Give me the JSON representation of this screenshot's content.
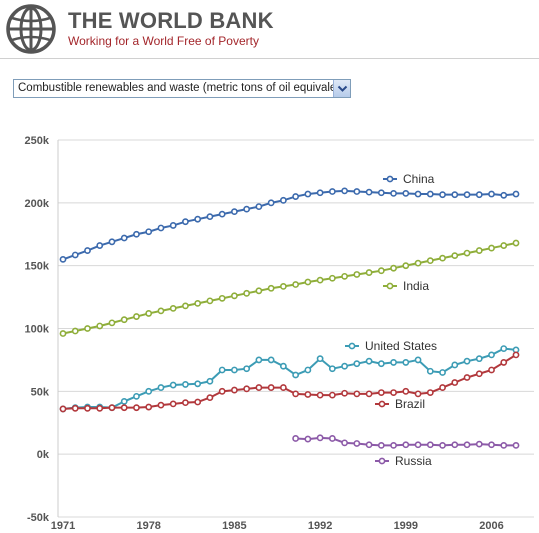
{
  "header": {
    "title": "THE WORLD BANK",
    "tagline": "Working for a World Free of Poverty"
  },
  "selector": {
    "value": "Combustible renewables and waste (metric tons of oil equivalent)"
  },
  "colors": {
    "brand_red": "#a3262b",
    "China": "#3c6aad",
    "India": "#8fae3a",
    "United States": "#3c9cb5",
    "Brazil": "#b2383c",
    "Russia": "#8c5aa8"
  },
  "chart_data": {
    "type": "line",
    "ylim": [
      -50000,
      250000
    ],
    "xlim": [
      1971,
      2008
    ],
    "y_ticks": [
      -50000,
      0,
      50000,
      100000,
      150000,
      200000,
      250000
    ],
    "y_tick_labels": [
      "-50k",
      "0k",
      "50k",
      "100k",
      "150k",
      "200k",
      "250k"
    ],
    "x_ticks": [
      1971,
      1978,
      1985,
      1992,
      1999,
      2006
    ],
    "x_tick_labels": [
      "1971",
      "1978",
      "1985",
      "1992",
      "1999",
      "2006"
    ],
    "grid": "horizontal",
    "series": [
      {
        "name": "China",
        "color": "#3c6aad",
        "x": [
          1971,
          1972,
          1973,
          1974,
          1975,
          1976,
          1977,
          1978,
          1979,
          1980,
          1981,
          1982,
          1983,
          1984,
          1985,
          1986,
          1987,
          1988,
          1989,
          1990,
          1991,
          1992,
          1993,
          1994,
          1995,
          1996,
          1997,
          1998,
          1999,
          2000,
          2001,
          2002,
          2003,
          2004,
          2005,
          2006,
          2007,
          2008
        ],
        "values": [
          155000,
          158500,
          162000,
          166000,
          169000,
          172000,
          175000,
          177000,
          180000,
          182000,
          185000,
          187000,
          189000,
          191000,
          193000,
          195000,
          197000,
          200000,
          202000,
          205000,
          207000,
          208000,
          209000,
          209500,
          209000,
          208500,
          208000,
          207500,
          207500,
          207000,
          207000,
          206500,
          206500,
          206500,
          206500,
          207000,
          206000,
          207000
        ]
      },
      {
        "name": "India",
        "color": "#8fae3a",
        "x": [
          1971,
          1972,
          1973,
          1974,
          1975,
          1976,
          1977,
          1978,
          1979,
          1980,
          1981,
          1982,
          1983,
          1984,
          1985,
          1986,
          1987,
          1988,
          1989,
          1990,
          1991,
          1992,
          1993,
          1994,
          1995,
          1996,
          1997,
          1998,
          1999,
          2000,
          2001,
          2002,
          2003,
          2004,
          2005,
          2006,
          2007,
          2008
        ],
        "values": [
          96000,
          98000,
          100000,
          102000,
          104500,
          107000,
          109500,
          112000,
          114000,
          116000,
          118000,
          120000,
          122000,
          124000,
          126000,
          128000,
          130000,
          132000,
          133500,
          135000,
          137000,
          138500,
          140000,
          141500,
          143000,
          144500,
          146000,
          148000,
          150000,
          152000,
          154000,
          156000,
          158000,
          160000,
          162000,
          164000,
          166000,
          168000
        ]
      },
      {
        "name": "United States",
        "color": "#3c9cb5",
        "x": [
          1971,
          1972,
          1973,
          1974,
          1975,
          1976,
          1977,
          1978,
          1979,
          1980,
          1981,
          1982,
          1983,
          1984,
          1985,
          1986,
          1987,
          1988,
          1989,
          1990,
          1991,
          1992,
          1993,
          1994,
          1995,
          1996,
          1997,
          1998,
          1999,
          2000,
          2001,
          2002,
          2003,
          2004,
          2005,
          2006,
          2007,
          2008
        ],
        "values": [
          36000,
          37000,
          37500,
          37500,
          37000,
          42000,
          46000,
          50000,
          53000,
          55000,
          55500,
          56000,
          58000,
          67000,
          67000,
          68000,
          75000,
          75000,
          70000,
          63000,
          67000,
          76000,
          68000,
          70000,
          72000,
          74000,
          72000,
          73000,
          73000,
          75000,
          66000,
          65000,
          71000,
          74000,
          76000,
          79000,
          84000,
          83000
        ]
      },
      {
        "name": "Brazil",
        "color": "#b2383c",
        "x": [
          1971,
          1972,
          1973,
          1974,
          1975,
          1976,
          1977,
          1978,
          1979,
          1980,
          1981,
          1982,
          1983,
          1984,
          1985,
          1986,
          1987,
          1988,
          1989,
          1990,
          1991,
          1992,
          1993,
          1994,
          1995,
          1996,
          1997,
          1998,
          1999,
          2000,
          2001,
          2002,
          2003,
          2004,
          2005,
          2006,
          2007,
          2008
        ],
        "values": [
          36000,
          36500,
          36500,
          36500,
          37000,
          37000,
          37000,
          37500,
          39000,
          40000,
          41000,
          41500,
          45000,
          50000,
          51000,
          52000,
          53000,
          53000,
          53000,
          48000,
          47500,
          47000,
          47000,
          48500,
          48000,
          48000,
          49000,
          49000,
          50000,
          48000,
          49000,
          53000,
          57000,
          61000,
          64000,
          67000,
          73000,
          79000
        ]
      },
      {
        "name": "Russia",
        "color": "#8c5aa8",
        "x": [
          1990,
          1991,
          1992,
          1993,
          1994,
          1995,
          1996,
          1997,
          1998,
          1999,
          2000,
          2001,
          2002,
          2003,
          2004,
          2005,
          2006,
          2007,
          2008
        ],
        "values": [
          12500,
          12000,
          13000,
          12500,
          9000,
          8500,
          7500,
          7000,
          7000,
          7500,
          7500,
          7500,
          7000,
          7500,
          7500,
          8000,
          7500,
          7000,
          7000
        ]
      }
    ]
  }
}
